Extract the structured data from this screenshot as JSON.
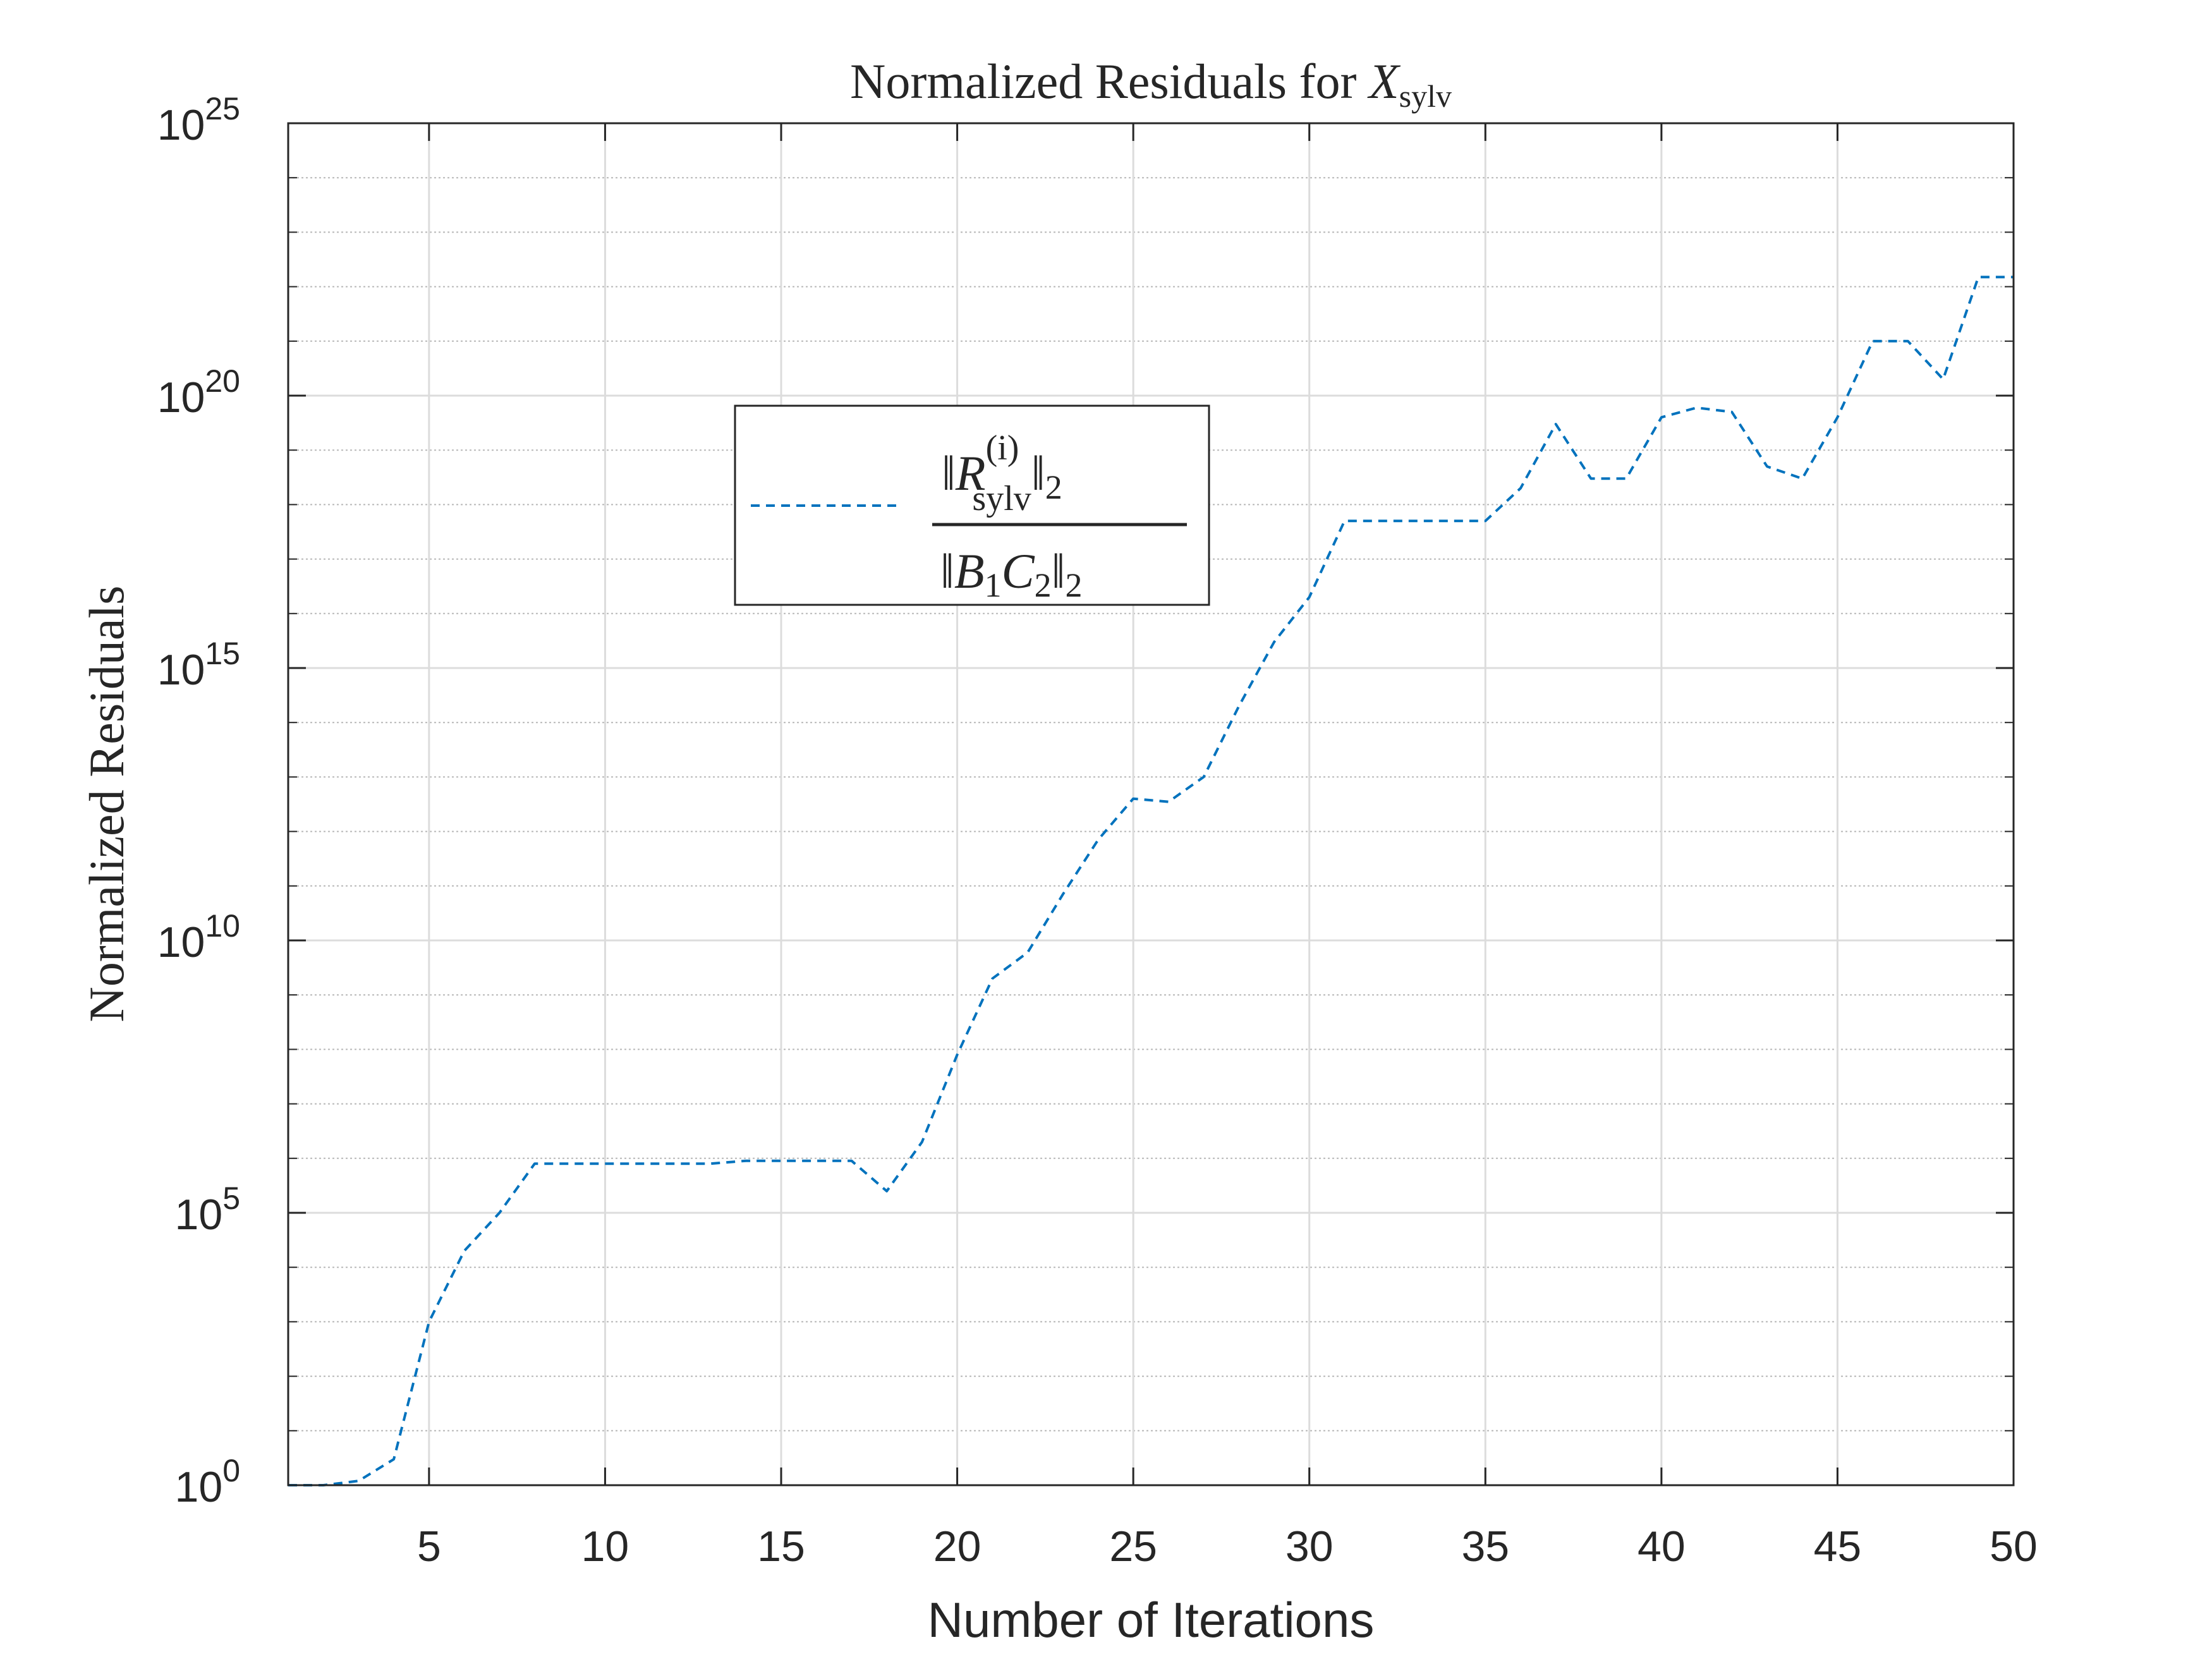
{
  "chart_data": {
    "type": "line",
    "title": {
      "text": "Normalized Residuals for ",
      "symbol": "X",
      "subscript": "sylv"
    },
    "xlabel": "Number of Iterations",
    "ylabel": "Normalized Residuals",
    "xlim": [
      1,
      50
    ],
    "ylim": [
      1,
      1e+25
    ],
    "yscale": "log",
    "grid": true,
    "minor_grid": true,
    "x_ticks": [
      5,
      10,
      15,
      20,
      25,
      30,
      35,
      40,
      45,
      50
    ],
    "y_ticks": [
      {
        "base": "10",
        "exp": "0",
        "value": 1
      },
      {
        "base": "10",
        "exp": "5",
        "value": 100000
      },
      {
        "base": "10",
        "exp": "10",
        "value": 10000000000.0
      },
      {
        "base": "10",
        "exp": "15",
        "value": 1000000000000000.0
      },
      {
        "base": "10",
        "exp": "20",
        "value": 1e+20
      },
      {
        "base": "10",
        "exp": "25",
        "value": 1e+25
      }
    ],
    "legend": {
      "position": "upper-center",
      "entry": {
        "numerator_left": "‖",
        "numerator_symbol": "R",
        "numerator_superscript": "(i)",
        "numerator_subscript": "sylv",
        "numerator_right": "‖",
        "numerator_norm": "2",
        "denominator_left": "‖",
        "denominator_b": "B",
        "denominator_b_sub": "1",
        "denominator_c": "C",
        "denominator_c_sub": "2",
        "denominator_right": "‖",
        "denominator_norm": "2"
      }
    },
    "series": [
      {
        "color": "#0072BD",
        "line_style": "dashed",
        "x": [
          1,
          2,
          3,
          4,
          5,
          6,
          7,
          8,
          9,
          10,
          11,
          12,
          13,
          14,
          15,
          16,
          17,
          18,
          19,
          20,
          21,
          22,
          23,
          24,
          25,
          26,
          27,
          28,
          29,
          30,
          31,
          32,
          33,
          34,
          35,
          36,
          37,
          38,
          39,
          40,
          41,
          42,
          43,
          44,
          45,
          46,
          47,
          48,
          49,
          50
        ],
        "y": [
          1,
          1,
          1.2,
          3,
          1000.0,
          20000.0,
          100000.0,
          800000.0,
          800000.0,
          800000.0,
          800000.0,
          800000.0,
          800000.0,
          900000.0,
          900000.0,
          900000.0,
          900000.0,
          250000.0,
          2000000.0,
          80000000.0,
          2000000000.0,
          6000000000.0,
          70000000000.0,
          700000000000.0,
          4000000000000.0,
          3500000000000.0,
          10000000000000.0,
          200000000000000.0,
          3000000000000000.0,
          2e+16,
          5e+17,
          5e+17,
          5e+17,
          5e+17,
          5e+17,
          2e+18,
          3e+19,
          3e+18,
          3e+18,
          4e+19,
          6e+19,
          5e+19,
          5e+18,
          3e+18,
          4e+19,
          1e+21,
          1e+21,
          2e+20,
          1.5e+22,
          1.5e+22
        ]
      }
    ]
  }
}
